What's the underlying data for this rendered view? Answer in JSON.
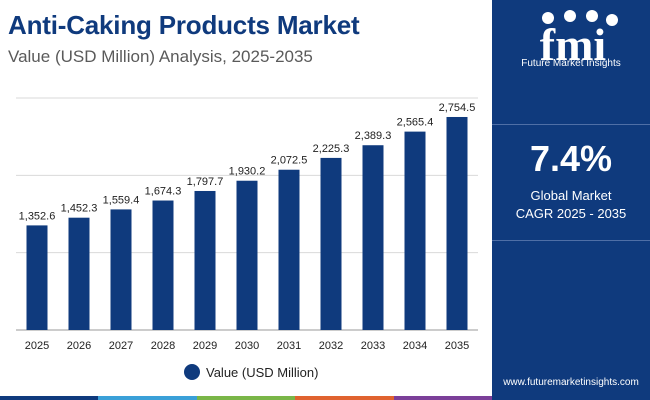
{
  "header": {
    "title": "Anti-Caking Products Market",
    "subtitle": "Value (USD Million) Analysis, 2025-2035"
  },
  "chart_data": {
    "type": "bar",
    "categories": [
      "2025",
      "2026",
      "2027",
      "2028",
      "2029",
      "2030",
      "2031",
      "2032",
      "2033",
      "2034",
      "2035"
    ],
    "series": [
      {
        "name": "Value (USD Million)",
        "values": [
          1352.6,
          1452.3,
          1559.4,
          1674.3,
          1797.7,
          1930.2,
          2072.5,
          2225.3,
          2389.3,
          2565.4,
          2754.5
        ]
      }
    ],
    "data_labels": [
      "1,352.6",
      "1,452.3",
      "1,559.4",
      "1,674.3",
      "1,797.7",
      "1,930.2",
      "2,072.5",
      "2,225.3",
      "2,389.3",
      "2,565.4",
      "2,754.5"
    ],
    "ylim": [
      0,
      3000
    ],
    "grid": true,
    "legend_position": "bottom-center",
    "bar_color": "#0f3a7d"
  },
  "legend": {
    "label": "Value (USD Million)"
  },
  "panel": {
    "logo_text": "fmi",
    "logo_sub": "Future Market Insights",
    "cagr_value": "7.4%",
    "cagr_line1": "Global Market",
    "cagr_line2": "CAGR 2025 - 2035",
    "website": "www.futuremarketinsights.com"
  },
  "colors": {
    "brand": "#0f3a7d",
    "bottom_bar": [
      "#0f3a7d",
      "#3aa0d8",
      "#7ab648",
      "#e0632f",
      "#7b3f99"
    ]
  }
}
